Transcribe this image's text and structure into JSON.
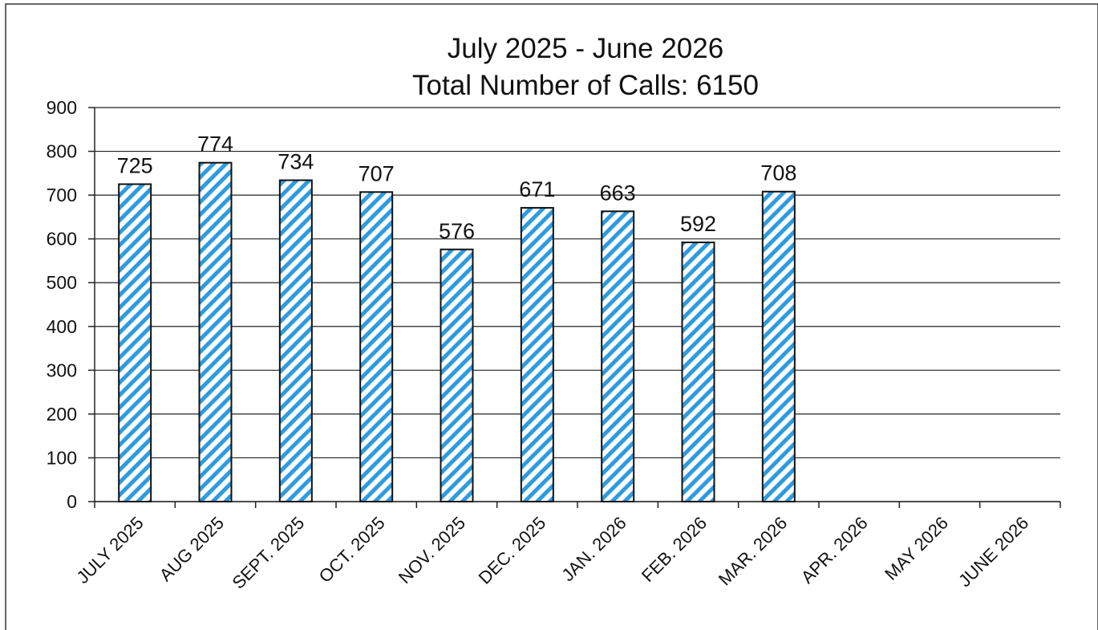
{
  "chart_data": {
    "type": "bar",
    "title": "July 2025 - June 2026",
    "subtitle": "Total Number of Calls: 6150",
    "categories": [
      "JULY 2025",
      "AUG 2025",
      "SEPT. 2025",
      "OCT. 2025",
      "NOV. 2025",
      "DEC. 2025",
      "JAN. 2026",
      "FEB. 2026",
      "MAR. 2026",
      "APR. 2026",
      "MAY 2026",
      "JUNE 2026"
    ],
    "values": [
      725,
      774,
      734,
      707,
      576,
      671,
      663,
      592,
      708,
      null,
      null,
      null
    ],
    "color": "#2e9be0",
    "ylim": [
      0,
      900
    ],
    "yticks": [
      0,
      100,
      200,
      300,
      400,
      500,
      600,
      700,
      800,
      900
    ],
    "grid": true
  }
}
